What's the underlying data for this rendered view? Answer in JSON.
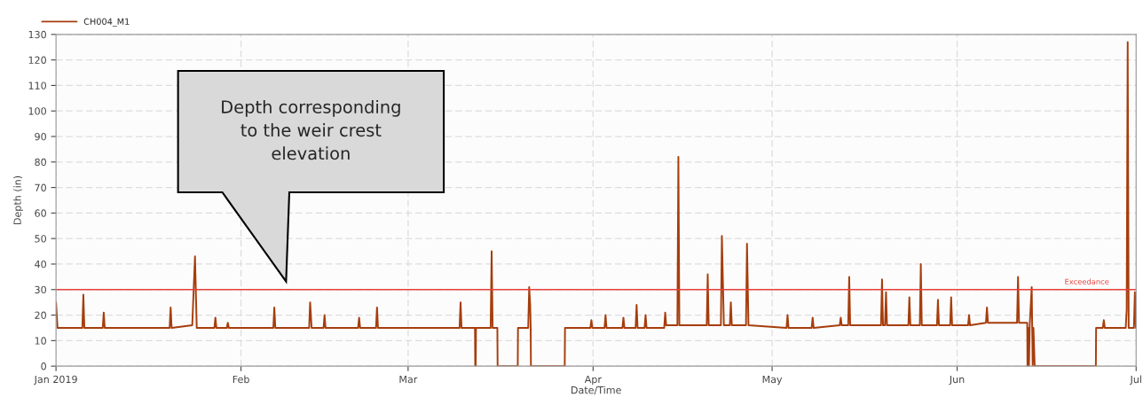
{
  "chart_data": {
    "type": "line",
    "xlabel": "Date/Time",
    "ylabel": "Depth (in)",
    "xlim": [
      "2019-01-01",
      "2019-07-01"
    ],
    "ylim": [
      0,
      130
    ],
    "xticks": [
      {
        "value": "2019-01-01",
        "label": "Jan 2019"
      },
      {
        "value": "2019-02-01",
        "label": "Feb"
      },
      {
        "value": "2019-03-01",
        "label": "Mar"
      },
      {
        "value": "2019-04-01",
        "label": "Apr"
      },
      {
        "value": "2019-05-01",
        "label": "May"
      },
      {
        "value": "2019-06-01",
        "label": "Jun"
      },
      {
        "value": "2019-07-01",
        "label": "Jul"
      }
    ],
    "yticks": [
      0,
      10,
      20,
      30,
      40,
      50,
      60,
      70,
      80,
      90,
      100,
      110,
      120,
      130
    ],
    "grid": true,
    "legend": "top left",
    "marker": "none",
    "line_style": "solid",
    "ref_lines": [
      {
        "axis": "y",
        "value": 30,
        "label": "Exceedance",
        "color": "#e8413c"
      }
    ],
    "annotations": [
      "Depth corresponding to the weir crest elevation"
    ],
    "series": [
      {
        "name": "CH004_M1",
        "color": "#a63d0c",
        "x": [
          "2019-01-01T00:00",
          "2019-01-01T06:00",
          "2019-01-05T10:00",
          "2019-01-05T14:00",
          "2019-01-05T18:00",
          "2019-01-08T20:00",
          "2019-01-09T00:00",
          "2019-01-09T04:00",
          "2019-01-20T01:00",
          "2019-01-20T05:00",
          "2019-01-20T09:00",
          "2019-01-23T20:00",
          "2019-01-24T07:00",
          "2019-01-24T14:00",
          "2019-01-27T13:00",
          "2019-01-27T17:00",
          "2019-01-27T21:00",
          "2019-01-29T15:00",
          "2019-01-29T19:00",
          "2019-01-29T23:00",
          "2019-02-06T10:00",
          "2019-02-06T14:00",
          "2019-02-06T18:00",
          "2019-02-12T10:00",
          "2019-02-12T14:00",
          "2019-02-12T20:00",
          "2019-02-14T20:00",
          "2019-02-15T00:00",
          "2019-02-15T04:00",
          "2019-02-20T15:00",
          "2019-02-20T19:00",
          "2019-02-20T23:00",
          "2019-02-23T15:00",
          "2019-02-23T19:00",
          "2019-02-23T23:00",
          "2019-03-09T15:00",
          "2019-03-09T19:00",
          "2019-03-09T23:00",
          "2019-03-12T05:00",
          "2019-03-12T06:00",
          "2019-03-12T08:00",
          "2019-03-12T09:00",
          "2019-03-14T20:00",
          "2019-03-15T00:00",
          "2019-03-15T04:00",
          "2019-03-15T23:00",
          "2019-03-16T00:00",
          "2019-03-19T09:00",
          "2019-03-19T10:00",
          "2019-03-21T03:00",
          "2019-03-21T07:00",
          "2019-03-21T11:00",
          "2019-03-21T13:00",
          "2019-03-21T14:00",
          "2019-03-27T06:00",
          "2019-03-27T07:00",
          "2019-03-31T13:00",
          "2019-03-31T17:00",
          "2019-03-31T21:00",
          "2019-04-02T22:00",
          "2019-04-03T02:00",
          "2019-04-03T06:00",
          "2019-04-05T22:00",
          "2019-04-06T02:00",
          "2019-04-06T06:00",
          "2019-04-08T03:00",
          "2019-04-08T07:00",
          "2019-04-08T11:00",
          "2019-04-09T15:00",
          "2019-04-09T19:00",
          "2019-04-09T23:00",
          "2019-04-12T22:00",
          "2019-04-13T02:00",
          "2019-04-13T06:00",
          "2019-04-15T03:00",
          "2019-04-15T07:00",
          "2019-04-15T11:00",
          "2019-04-20T01:00",
          "2019-04-20T05:00",
          "2019-04-20T09:00",
          "2019-04-22T10:00",
          "2019-04-22T14:00",
          "2019-04-22T22:00",
          "2019-04-23T22:00",
          "2019-04-24T02:00",
          "2019-04-24T06:00",
          "2019-04-26T15:00",
          "2019-04-26T19:00",
          "2019-04-27T01:00",
          "2019-05-03T10:00",
          "2019-05-03T14:00",
          "2019-05-03T18:00",
          "2019-05-07T15:00",
          "2019-05-07T19:00",
          "2019-05-07T23:00",
          "2019-05-12T08:00",
          "2019-05-12T12:00",
          "2019-05-12T16:00",
          "2019-05-13T18:00",
          "2019-05-13T22:00",
          "2019-05-14T02:00",
          "2019-05-19T06:00",
          "2019-05-19T10:00",
          "2019-05-19T14:00",
          "2019-05-19T22:00",
          "2019-05-20T02:00",
          "2019-05-20T06:00",
          "2019-05-23T20:00",
          "2019-05-24T00:00",
          "2019-05-24T04:00",
          "2019-05-25T18:00",
          "2019-05-25T22:00",
          "2019-05-26T02:00",
          "2019-05-28T15:00",
          "2019-05-28T19:00",
          "2019-05-28T23:00",
          "2019-05-30T20:00",
          "2019-05-31T00:00",
          "2019-05-31T04:00",
          "2019-06-02T20:00",
          "2019-06-03T00:00",
          "2019-06-03T04:00",
          "2019-06-05T20:00",
          "2019-06-06T00:00",
          "2019-06-06T04:00",
          "2019-06-11T01:00",
          "2019-06-11T05:00",
          "2019-06-11T09:00",
          "2019-06-12T18:00",
          "2019-06-12T19:00",
          "2019-06-12T22:00",
          "2019-06-13T01:00",
          "2019-06-13T04:00",
          "2019-06-13T12:00",
          "2019-06-13T16:00",
          "2019-06-13T19:00",
          "2019-06-14T00:00",
          "2019-06-24T06:00",
          "2019-06-24T07:00",
          "2019-06-25T10:00",
          "2019-06-25T14:00",
          "2019-06-25T18:00",
          "2019-06-29T06:00",
          "2019-06-29T10:00",
          "2019-06-29T14:00",
          "2019-06-29T18:00",
          "2019-06-30T15:00",
          "2019-06-30T19:00",
          "2019-06-30T23:00",
          "2019-07-01T00:00"
        ],
        "values": [
          25,
          15,
          15,
          28,
          15,
          15,
          21,
          15,
          15,
          23,
          15,
          16,
          43,
          15,
          15,
          19,
          15,
          15,
          17,
          15,
          15,
          23,
          15,
          15,
          25,
          15,
          15,
          20,
          15,
          15,
          19,
          15,
          15,
          23,
          15,
          15,
          25,
          15,
          15,
          0,
          0,
          15,
          15,
          45,
          15,
          15,
          0,
          0,
          15,
          15,
          31,
          24,
          15,
          0,
          0,
          15,
          15,
          18,
          15,
          15,
          20,
          15,
          15,
          19,
          15,
          15,
          24,
          15,
          15,
          20,
          15,
          15,
          21,
          16,
          16,
          82,
          16,
          16,
          36,
          16,
          16,
          51,
          16,
          16,
          25,
          16,
          16,
          48,
          16,
          15,
          20,
          15,
          15,
          19,
          15,
          16,
          19,
          16,
          16,
          35,
          16,
          16,
          34,
          16,
          16,
          29,
          16,
          16,
          27,
          16,
          16,
          40,
          16,
          16,
          26,
          16,
          16,
          27,
          16,
          16,
          20,
          16,
          17,
          23,
          17,
          17,
          35,
          17,
          17,
          0,
          15,
          0,
          16,
          31,
          0,
          15,
          0,
          0,
          15,
          15,
          18,
          15,
          15,
          22,
          127,
          15,
          15,
          29,
          15,
          15
        ]
      }
    ]
  }
}
